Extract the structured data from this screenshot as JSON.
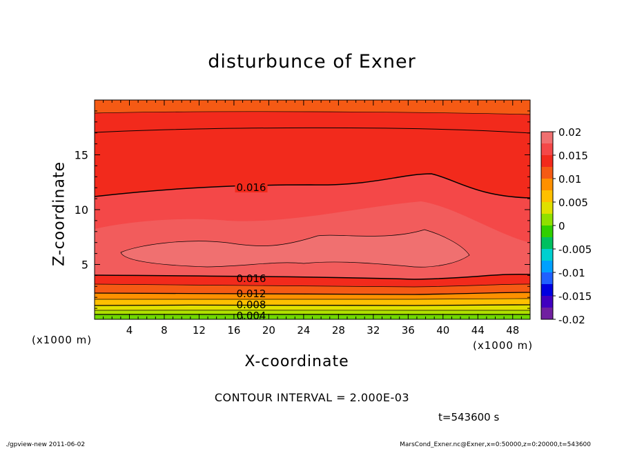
{
  "chart_data": {
    "type": "heatmap",
    "title": "disturbunce of Exner",
    "xlabel": "X-coordinate",
    "ylabel": "Z-coordinate",
    "x_unit": "(x1000 m)",
    "y_unit": "(x1000 m)",
    "xlim": [
      0,
      50
    ],
    "ylim": [
      0,
      20
    ],
    "x_ticks": [
      "4",
      "8",
      "12",
      "16",
      "20",
      "24",
      "28",
      "32",
      "36",
      "40",
      "44",
      "48"
    ],
    "y_ticks": [
      "5",
      "10",
      "15"
    ],
    "contour_labels": [
      "0.016",
      "0.016",
      "0.012",
      "0.008",
      "0.004"
    ],
    "colorbar": {
      "range": [
        -0.02,
        0.02
      ],
      "tick_labels": [
        "0.02",
        "0.015",
        "0.01",
        "0.005",
        "0",
        "-0.005",
        "-0.01",
        "-0.015",
        "-0.02"
      ],
      "colors": [
        "#f07070",
        "#f44848",
        "#f22a1c",
        "#f55a14",
        "#ff9000",
        "#ffc000",
        "#e0e000",
        "#90e000",
        "#30d000",
        "#00c060",
        "#00d0d0",
        "#00a0ff",
        "#2060ff",
        "#0000e0",
        "#4000c0",
        "#7020a0"
      ]
    },
    "contour_interval_text": "CONTOUR INTERVAL = 2.000E-03"
  },
  "time_label": "t=543600 s",
  "footer_left": "./gpview-new   2011-06-02",
  "footer_right": "MarsCond_Exner.nc@Exner,x=0:50000,z=0:20000,t=543600"
}
